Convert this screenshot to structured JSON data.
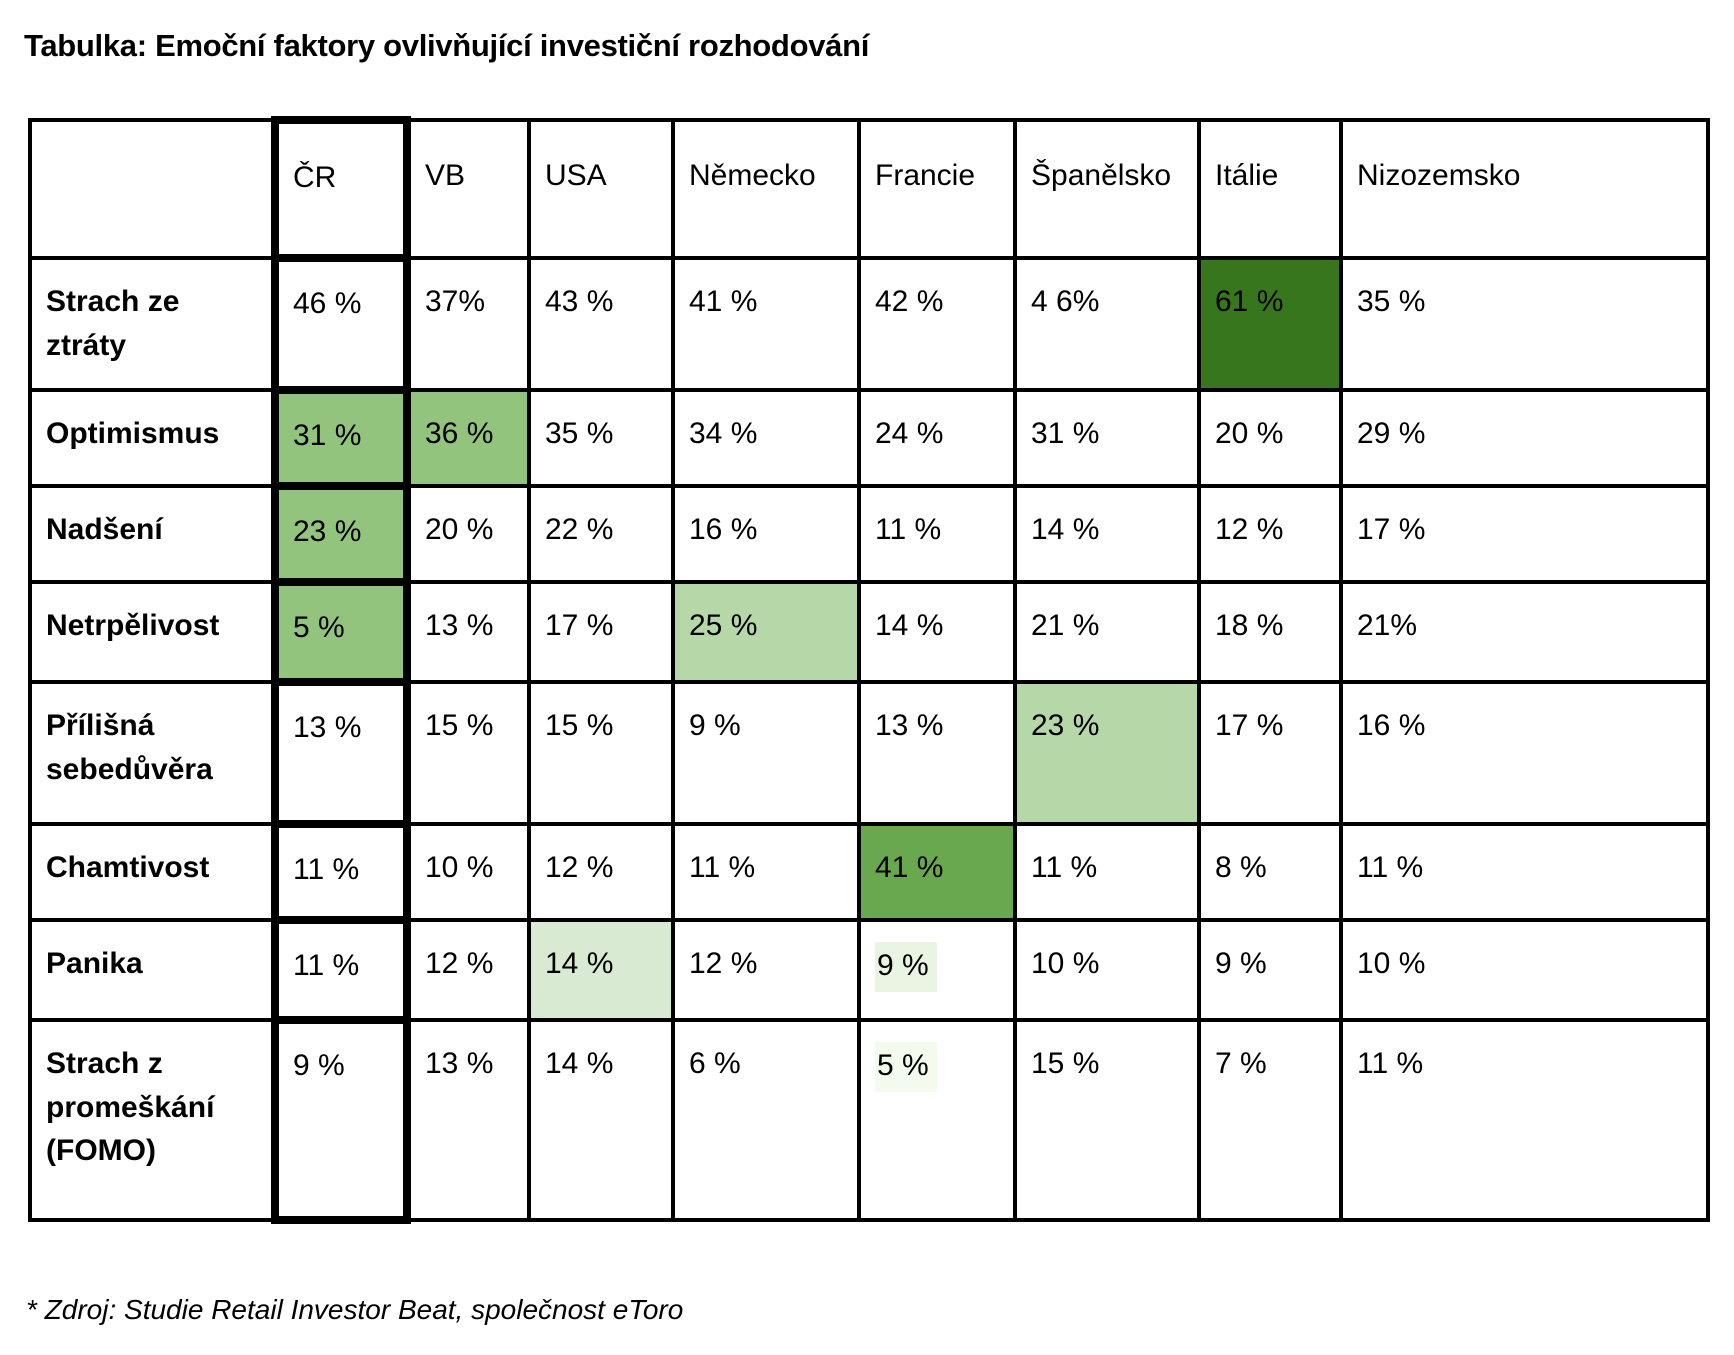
{
  "page": {
    "title": "Tabulka: Emoční faktory ovlivňující investiční rozhodování",
    "footnote": "* Zdroj: Studie Retail Investor Beat, společnost eToro"
  },
  "colors": {
    "dark_green": "#38761d",
    "mid_green": "#6aa84f",
    "soft_green": "#93c47d",
    "light_green": "#b6d7a8",
    "pale_green": "#d9ead3",
    "faint_green": "#eaf4e2",
    "faintest_green": "#f3faee"
  },
  "chart_data": {
    "type": "table",
    "title": "Tabulka: Emoční faktory ovlivňující investiční rozhodování",
    "columns": [
      "ČR",
      "VB",
      "USA",
      "Německo",
      "Francie",
      "Španělsko",
      "Itálie",
      "Nizozemsko"
    ],
    "rows": [
      {
        "label": "Strach ze ztráty",
        "cells": [
          {
            "v": "46 %"
          },
          {
            "v": "37%"
          },
          {
            "v": "43 %"
          },
          {
            "v": "41 %"
          },
          {
            "v": "42 %"
          },
          {
            "v": "4 6%"
          },
          {
            "v": "61 %",
            "bg": "dark_green"
          },
          {
            "v": "35 %"
          }
        ]
      },
      {
        "label": "Optimismus",
        "cells": [
          {
            "v": "31 %",
            "bg": "soft_green"
          },
          {
            "v": "36 %",
            "bg": "soft_green"
          },
          {
            "v": "35 %"
          },
          {
            "v": "34 %"
          },
          {
            "v": "24 %"
          },
          {
            "v": "31 %"
          },
          {
            "v": "20 %"
          },
          {
            "v": "29 %"
          }
        ]
      },
      {
        "label": "Nadšení",
        "cells": [
          {
            "v": "23 %",
            "bg": "soft_green"
          },
          {
            "v": "20 %"
          },
          {
            "v": "22 %"
          },
          {
            "v": "16 %"
          },
          {
            "v": "11 %"
          },
          {
            "v": "14 %"
          },
          {
            "v": "12 %"
          },
          {
            "v": "17 %"
          }
        ]
      },
      {
        "label": "Netrpělivost",
        "cells": [
          {
            "v": "5 %",
            "bg": "soft_green"
          },
          {
            "v": "13 %"
          },
          {
            "v": "17 %"
          },
          {
            "v": "25 %",
            "bg": "light_green"
          },
          {
            "v": "14 %"
          },
          {
            "v": "21 %"
          },
          {
            "v": "18 %"
          },
          {
            "v": "21%"
          }
        ]
      },
      {
        "label": "Přílišná sebedůvěra",
        "cells": [
          {
            "v": "13 %"
          },
          {
            "v": "15 %"
          },
          {
            "v": "15 %"
          },
          {
            "v": "9 %"
          },
          {
            "v": "13 %"
          },
          {
            "v": "23 %",
            "bg": "light_green"
          },
          {
            "v": "17 %"
          },
          {
            "v": "16 %"
          }
        ]
      },
      {
        "label": "Chamtivost",
        "cells": [
          {
            "v": "11 %"
          },
          {
            "v": "10 %"
          },
          {
            "v": "12 %"
          },
          {
            "v": "11 %"
          },
          {
            "v": "41 %",
            "bg": "mid_green"
          },
          {
            "v": "11 %"
          },
          {
            "v": "8 %"
          },
          {
            "v": "11 %"
          }
        ]
      },
      {
        "label": "Panika",
        "cells": [
          {
            "v": "11 %"
          },
          {
            "v": "12 %"
          },
          {
            "v": "14 %",
            "bg": "pale_green"
          },
          {
            "v": "12 %"
          },
          {
            "v": "9 %",
            "mark": "faint_green"
          },
          {
            "v": "10 %"
          },
          {
            "v": "9 %"
          },
          {
            "v": "10 %"
          }
        ]
      },
      {
        "label": "Strach z promeškání (FOMO)",
        "cells": [
          {
            "v": "9 %"
          },
          {
            "v": "13 %"
          },
          {
            "v": "14 %"
          },
          {
            "v": "6 %"
          },
          {
            "v": "5 %",
            "mark": "faintest_green"
          },
          {
            "v": "15 %"
          },
          {
            "v": "7 %"
          },
          {
            "v": "11 %"
          }
        ]
      }
    ]
  }
}
